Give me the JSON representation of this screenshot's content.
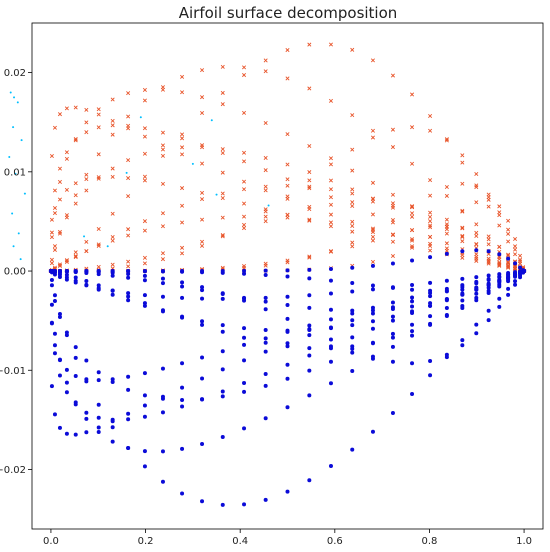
{
  "chart_data": {
    "type": "scatter",
    "title": "Airfoil surface decomposition",
    "xlabel": "",
    "ylabel": "",
    "xlim": [
      -0.04,
      1.04
    ],
    "ylim": [
      -0.026,
      0.025
    ],
    "grid": false,
    "legend": "none",
    "x_ticks": [
      {
        "value": 0.0,
        "label": "0.0"
      },
      {
        "value": 0.2,
        "label": "0.2"
      },
      {
        "value": 0.4,
        "label": "0.4"
      },
      {
        "value": 0.6,
        "label": "0.6"
      },
      {
        "value": 0.8,
        "label": "0.8"
      },
      {
        "value": 1.0,
        "label": "1.0"
      }
    ],
    "y_ticks": [
      {
        "value": -0.02,
        "label": "−0.02"
      },
      {
        "value": -0.01,
        "label": "−0.01"
      },
      {
        "value": 0.0,
        "label": "0.00"
      },
      {
        "value": 0.01,
        "label": "0.01"
      },
      {
        "value": 0.02,
        "label": "0.02"
      }
    ],
    "series": [
      {
        "color": "#e8542a",
        "marker": "x",
        "surface": "upper",
        "curves": [
          {
            "tmax": 0.047,
            "max": 0.0165
          },
          {
            "tmax": 0.14,
            "max": 0.0147
          },
          {
            "tmax": 0.22,
            "max": 0.0183
          },
          {
            "tmax": 0.38,
            "max": 0.0206
          },
          {
            "tmax": 0.57,
            "max": 0.0229
          },
          {
            "tmax": 0.76,
            "max": 0.0145
          },
          {
            "tmax": 0.87,
            "max": 0.0088
          },
          {
            "tmax": 0.92,
            "max": 0.0072
          },
          {
            "tmax": 0.3,
            "max": 0.0125
          },
          {
            "tmax": 0.5,
            "max": 0.0086
          },
          {
            "tmax": 0.67,
            "max": 0.007
          },
          {
            "tmax": 0.12,
            "max": 0.0095
          },
          {
            "tmax": 0.43,
            "max": 0.0055
          },
          {
            "tmax": 0.83,
            "max": 0.0045
          }
        ]
      },
      {
        "color": "#0b0bd8",
        "marker": "o",
        "surface": "lower",
        "curves": [
          {
            "tmax": 0.047,
            "max": 0.0165
          },
          {
            "tmax": 0.14,
            "max": 0.015
          },
          {
            "tmax": 0.22,
            "max": 0.0182
          },
          {
            "tmax": 0.38,
            "max": 0.0236
          },
          {
            "tmax": 0.57,
            "max": 0.0078
          },
          {
            "tmax": 0.76,
            "max": 0.0093
          },
          {
            "tmax": 0.28,
            "max": 0.013
          },
          {
            "tmax": 0.5,
            "max": 0.006
          },
          {
            "tmax": 0.65,
            "max": 0.004
          },
          {
            "tmax": 0.1,
            "max": 0.011
          },
          {
            "tmax": 0.36,
            "max": 0.0028
          },
          {
            "tmax": 0.82,
            "max": 0.002
          }
        ],
        "extra_curve": {
          "tmax": 0.9,
          "max": 0.0021,
          "sign": 1
        }
      },
      {
        "color": "#00bfff",
        "marker": ".",
        "surface": "clipped",
        "points": [
          [
            -0.085,
            0.018
          ],
          [
            -0.078,
            0.0175
          ],
          [
            -0.07,
            0.017
          ],
          [
            -0.08,
            0.0145
          ],
          [
            -0.062,
            0.0132
          ],
          [
            -0.088,
            0.0115
          ],
          [
            -0.075,
            0.0098
          ],
          [
            -0.055,
            0.0078
          ],
          [
            -0.082,
            0.0058
          ],
          [
            -0.068,
            0.0038
          ],
          [
            -0.079,
            0.0025
          ],
          [
            -0.064,
            0.0012
          ],
          [
            0.19,
            0.0155
          ],
          [
            0.34,
            0.0152
          ],
          [
            0.16,
            0.0099
          ],
          [
            0.3,
            0.0108
          ],
          [
            0.35,
            0.0077
          ],
          [
            0.46,
            0.0066
          ],
          [
            0.07,
            0.0035
          ],
          [
            0.12,
            0.0025
          ]
        ]
      }
    ]
  }
}
